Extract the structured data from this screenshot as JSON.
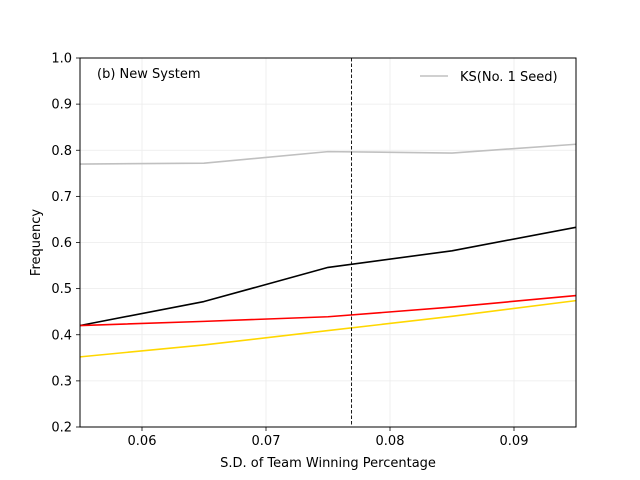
{
  "chart_data": {
    "type": "line",
    "annotation": "(b) New System",
    "xlabel": "S.D. of Team Winning Percentage",
    "ylabel": "Frequency",
    "xlim": [
      0.055,
      0.095
    ],
    "ylim": [
      0.2,
      1.0
    ],
    "xticks": [
      0.06,
      0.07,
      0.08,
      0.09
    ],
    "xtick_labels": [
      "0.06",
      "0.07",
      "0.08",
      "0.09"
    ],
    "yticks": [
      0.2,
      0.3,
      0.4,
      0.5,
      0.6,
      0.7,
      0.8,
      0.9,
      1.0
    ],
    "ytick_labels": [
      "0.2",
      "0.3",
      "0.4",
      "0.5",
      "0.6",
      "0.7",
      "0.8",
      "0.9",
      "1.0"
    ],
    "grid": true,
    "legend_position": "top-right",
    "vline": {
      "x": 0.0769,
      "style": "dashed",
      "color": "#000000"
    },
    "x": [
      0.055,
      0.065,
      0.075,
      0.085,
      0.095
    ],
    "series": [
      {
        "name": "KS(No. 1 Seed)",
        "color": "#c0c0c0",
        "values": [
          0.77,
          0.772,
          0.797,
          0.794,
          0.813
        ],
        "in_legend": true
      },
      {
        "color": "#000000",
        "values": [
          0.42,
          0.472,
          0.546,
          0.582,
          0.633
        ],
        "in_legend": false
      },
      {
        "color": "#ff0000",
        "values": [
          0.42,
          0.429,
          0.439,
          0.46,
          0.485
        ],
        "in_legend": false
      },
      {
        "color": "#ffd700",
        "values": [
          0.352,
          0.378,
          0.409,
          0.44,
          0.474
        ],
        "in_legend": false
      }
    ]
  }
}
